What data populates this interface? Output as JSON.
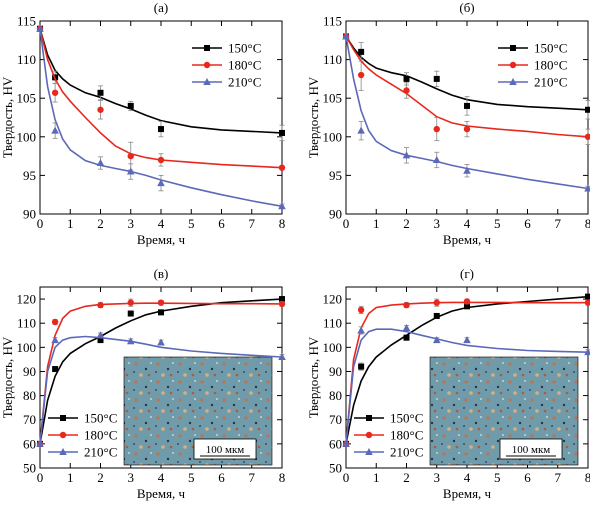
{
  "chart_data": [
    {
      "type": "line",
      "panel_label": "(а)",
      "xlabel": "Время, ч",
      "ylabel": "Твердость, HV",
      "xlim": [
        0,
        8
      ],
      "ylim": [
        90,
        115
      ],
      "x_ticks": [
        "0",
        "1",
        "2",
        "3",
        "4",
        "5",
        "6",
        "7",
        "8"
      ],
      "y_ticks": [
        "90",
        "95",
        "100",
        "105",
        "110",
        "115"
      ],
      "legend_position": "top-right",
      "series": [
        {
          "name": "150°C",
          "color": "#000000",
          "marker": "square",
          "x": [
            0,
            0.5,
            2,
            3,
            4,
            8
          ],
          "y": [
            114,
            107.7,
            105.7,
            104,
            101,
            100.5
          ],
          "err": [
            0,
            0.8,
            0.9,
            0.6,
            1.0,
            1.0
          ],
          "fit_x": [
            0,
            0.25,
            0.5,
            0.75,
            1,
            1.5,
            2,
            2.5,
            3,
            3.5,
            4,
            5,
            6,
            7,
            8
          ],
          "fit_y": [
            114,
            110.6,
            108.6,
            107.5,
            106.7,
            105.7,
            105.1,
            104.3,
            103.6,
            102.8,
            102.1,
            101.3,
            100.9,
            100.7,
            100.5
          ]
        },
        {
          "name": "180°C",
          "color": "#e8281d",
          "marker": "circle",
          "x": [
            0,
            0.5,
            2,
            3,
            4,
            8
          ],
          "y": [
            114,
            105.7,
            103.5,
            97.5,
            97,
            96
          ],
          "err": [
            0,
            1.2,
            1.2,
            1.8,
            0.8,
            0.2
          ],
          "fit_x": [
            0,
            0.25,
            0.5,
            0.75,
            1,
            1.5,
            2,
            2.5,
            3,
            3.5,
            4,
            5,
            6,
            7,
            8
          ],
          "fit_y": [
            114,
            110,
            107.5,
            105.8,
            104.6,
            102.5,
            100.5,
            98.8,
            97.8,
            97.3,
            97,
            96.7,
            96.4,
            96.2,
            96
          ]
        },
        {
          "name": "210°C",
          "color": "#5b69b8",
          "marker": "triangle",
          "x": [
            0,
            0.5,
            2,
            3,
            4,
            8
          ],
          "y": [
            114,
            100.8,
            96.6,
            95.5,
            94,
            91
          ],
          "err": [
            0,
            1.0,
            0.8,
            1.0,
            1.0,
            0.3
          ],
          "fit_x": [
            0,
            0.25,
            0.5,
            0.75,
            1,
            1.5,
            2,
            2.5,
            3,
            3.5,
            4,
            5,
            6,
            7,
            8
          ],
          "fit_y": [
            114,
            106.5,
            102.2,
            99.7,
            98.3,
            96.9,
            96.3,
            95.9,
            95.5,
            95,
            94.4,
            93.4,
            92.5,
            91.7,
            91
          ]
        }
      ]
    },
    {
      "type": "line",
      "panel_label": "(б)",
      "xlabel": "Время, ч",
      "ylabel": "Твердость, HV",
      "xlim": [
        0,
        8
      ],
      "ylim": [
        90,
        115
      ],
      "x_ticks": [
        "0",
        "1",
        "2",
        "3",
        "4",
        "5",
        "6",
        "7",
        "8"
      ],
      "y_ticks": [
        "90",
        "95",
        "100",
        "105",
        "110",
        "115"
      ],
      "legend_position": "top-right",
      "series": [
        {
          "name": "150°C",
          "color": "#000000",
          "marker": "square",
          "x": [
            0,
            0.5,
            2,
            3,
            4,
            8
          ],
          "y": [
            113,
            111,
            107.5,
            107.5,
            104,
            103.5
          ],
          "err": [
            0,
            1.2,
            0.8,
            1.0,
            1.2,
            1.2
          ],
          "fit_x": [
            0,
            0.25,
            0.5,
            0.75,
            1,
            1.5,
            2,
            2.5,
            3,
            3.5,
            4,
            5,
            6,
            7,
            8
          ],
          "fit_y": [
            113,
            111.5,
            110.3,
            109.5,
            108.9,
            108.3,
            107.9,
            107.1,
            106.2,
            105.4,
            104.8,
            104.2,
            103.9,
            103.7,
            103.5
          ]
        },
        {
          "name": "180°C",
          "color": "#e8281d",
          "marker": "circle",
          "x": [
            0,
            0.5,
            2,
            3,
            4,
            8
          ],
          "y": [
            113,
            108,
            106,
            101,
            101,
            100
          ],
          "err": [
            0,
            2.0,
            1.0,
            1.5,
            1.0,
            1.0
          ],
          "fit_x": [
            0,
            0.25,
            0.5,
            0.75,
            1,
            1.5,
            2,
            2.5,
            3,
            3.5,
            4,
            5,
            6,
            7,
            8
          ],
          "fit_y": [
            113,
            111.3,
            109.8,
            108.8,
            108,
            106.8,
            105.6,
            104.1,
            102.6,
            101.8,
            101.4,
            101,
            100.7,
            100.3,
            100
          ]
        },
        {
          "name": "210°C",
          "color": "#5b69b8",
          "marker": "triangle",
          "x": [
            0,
            0.5,
            2,
            3,
            4,
            8
          ],
          "y": [
            113,
            100.8,
            97.6,
            97,
            95.6,
            93.3
          ],
          "err": [
            0,
            1.2,
            1.0,
            1.0,
            0.8,
            0.3
          ],
          "fit_x": [
            0,
            0.25,
            0.5,
            0.75,
            1,
            1.5,
            2,
            2.5,
            3,
            3.5,
            4,
            5,
            6,
            7,
            8
          ],
          "fit_y": [
            113,
            107.5,
            103.4,
            100.8,
            99.4,
            98.2,
            97.6,
            97.2,
            96.8,
            96.3,
            95.9,
            95.2,
            94.5,
            93.9,
            93.3
          ]
        }
      ]
    },
    {
      "type": "line",
      "panel_label": "(в)",
      "xlabel": "Время, ч",
      "ylabel": "Твердость, HV",
      "xlim": [
        0,
        8
      ],
      "ylim": [
        50,
        125
      ],
      "x_ticks": [
        "0",
        "1",
        "2",
        "3",
        "4",
        "5",
        "6",
        "7",
        "8"
      ],
      "y_ticks": [
        "50",
        "60",
        "70",
        "80",
        "90",
        "100",
        "110",
        "120"
      ],
      "legend_position": "bottom-left",
      "inset_scale_label": "100 мкм",
      "series": [
        {
          "name": "150°C",
          "color": "#000000",
          "marker": "square",
          "x": [
            0,
            0.5,
            2,
            3,
            4,
            8
          ],
          "y": [
            60,
            91,
            103,
            114,
            114.5,
            120
          ],
          "err": [
            0,
            1,
            1,
            1,
            1,
            1
          ],
          "fit_x": [
            0,
            0.25,
            0.5,
            0.75,
            1,
            1.5,
            2,
            2.5,
            3,
            3.5,
            4,
            5,
            6,
            7,
            8
          ],
          "fit_y": [
            60,
            78,
            88,
            94,
            97.5,
            101.5,
            104.5,
            108,
            111,
            113.5,
            115,
            117,
            118.5,
            119.3,
            120
          ]
        },
        {
          "name": "180°C",
          "color": "#e8281d",
          "marker": "circle",
          "x": [
            0,
            0.5,
            2,
            3,
            4,
            8
          ],
          "y": [
            60,
            110.5,
            117.5,
            118.5,
            118.5,
            118
          ],
          "err": [
            0,
            1,
            1,
            1.5,
            1,
            1
          ],
          "fit_x": [
            0,
            0.25,
            0.5,
            0.75,
            1,
            1.5,
            2,
            2.5,
            3,
            3.5,
            4,
            5,
            6,
            7,
            8
          ],
          "fit_y": [
            60,
            92,
            105,
            112,
            115,
            117,
            117.8,
            118,
            118.2,
            118.3,
            118.3,
            118.2,
            118.1,
            118.1,
            118
          ]
        },
        {
          "name": "210°C",
          "color": "#5b69b8",
          "marker": "triangle",
          "x": [
            0,
            0.5,
            2,
            3,
            4,
            8
          ],
          "y": [
            60,
            103,
            105,
            102.5,
            102,
            96
          ],
          "err": [
            0,
            1,
            1,
            1,
            1,
            1
          ],
          "fit_x": [
            0,
            0.25,
            0.5,
            0.75,
            1,
            1.5,
            2,
            2.5,
            3,
            3.5,
            4,
            5,
            6,
            7,
            8
          ],
          "fit_y": [
            60,
            90,
            100,
            103,
            104,
            104.5,
            104,
            103.3,
            102.5,
            101.3,
            100,
            98.5,
            97.5,
            96.7,
            96
          ]
        }
      ]
    },
    {
      "type": "line",
      "panel_label": "(г)",
      "xlabel": "Время, ч",
      "ylabel": "Твердость, HV",
      "xlim": [
        0,
        8
      ],
      "ylim": [
        50,
        125
      ],
      "x_ticks": [
        "0",
        "1",
        "2",
        "3",
        "4",
        "5",
        "6",
        "7",
        "8"
      ],
      "y_ticks": [
        "50",
        "60",
        "70",
        "80",
        "90",
        "100",
        "110",
        "120"
      ],
      "legend_position": "bottom-left",
      "inset_scale_label": "100 мкм",
      "series": [
        {
          "name": "150°C",
          "color": "#000000",
          "marker": "square",
          "x": [
            0,
            0.5,
            2,
            3,
            4,
            8
          ],
          "y": [
            60,
            92,
            104,
            113,
            117,
            121
          ],
          "err": [
            0,
            1.5,
            1,
            1,
            1,
            1
          ],
          "fit_x": [
            0,
            0.25,
            0.5,
            0.75,
            1,
            1.5,
            2,
            2.5,
            3,
            3.5,
            4,
            5,
            6,
            7,
            8
          ],
          "fit_y": [
            60,
            76,
            86,
            92,
            96,
            101,
            105,
            109,
            112.5,
            115,
            116.5,
            118,
            119,
            120,
            121
          ]
        },
        {
          "name": "180°C",
          "color": "#e8281d",
          "marker": "circle",
          "x": [
            0,
            0.5,
            2,
            3,
            4,
            8
          ],
          "y": [
            60,
            115.5,
            117.5,
            118.5,
            119,
            118.5
          ],
          "err": [
            0,
            1.5,
            1,
            1.5,
            1,
            1
          ],
          "fit_x": [
            0,
            0.25,
            0.5,
            0.75,
            1,
            1.5,
            2,
            2.5,
            3,
            3.5,
            4,
            5,
            6,
            7,
            8
          ],
          "fit_y": [
            60,
            95,
            108,
            114,
            116.5,
            117.5,
            118,
            118.3,
            118.5,
            118.6,
            118.6,
            118.6,
            118.5,
            118.5,
            118.5
          ]
        },
        {
          "name": "210°C",
          "color": "#5b69b8",
          "marker": "triangle",
          "x": [
            0,
            0.5,
            2,
            3,
            4,
            8
          ],
          "y": [
            60,
            107,
            108,
            103,
            103,
            98
          ],
          "err": [
            0,
            1.5,
            1,
            1,
            1,
            1
          ],
          "fit_x": [
            0,
            0.25,
            0.5,
            0.75,
            1,
            1.5,
            2,
            2.5,
            3,
            3.5,
            4,
            5,
            6,
            7,
            8
          ],
          "fit_y": [
            60,
            92,
            103,
            106.5,
            107.5,
            107.5,
            106.5,
            105,
            103.5,
            102,
            100.8,
            99.5,
            98.7,
            98.3,
            98
          ]
        }
      ]
    }
  ]
}
